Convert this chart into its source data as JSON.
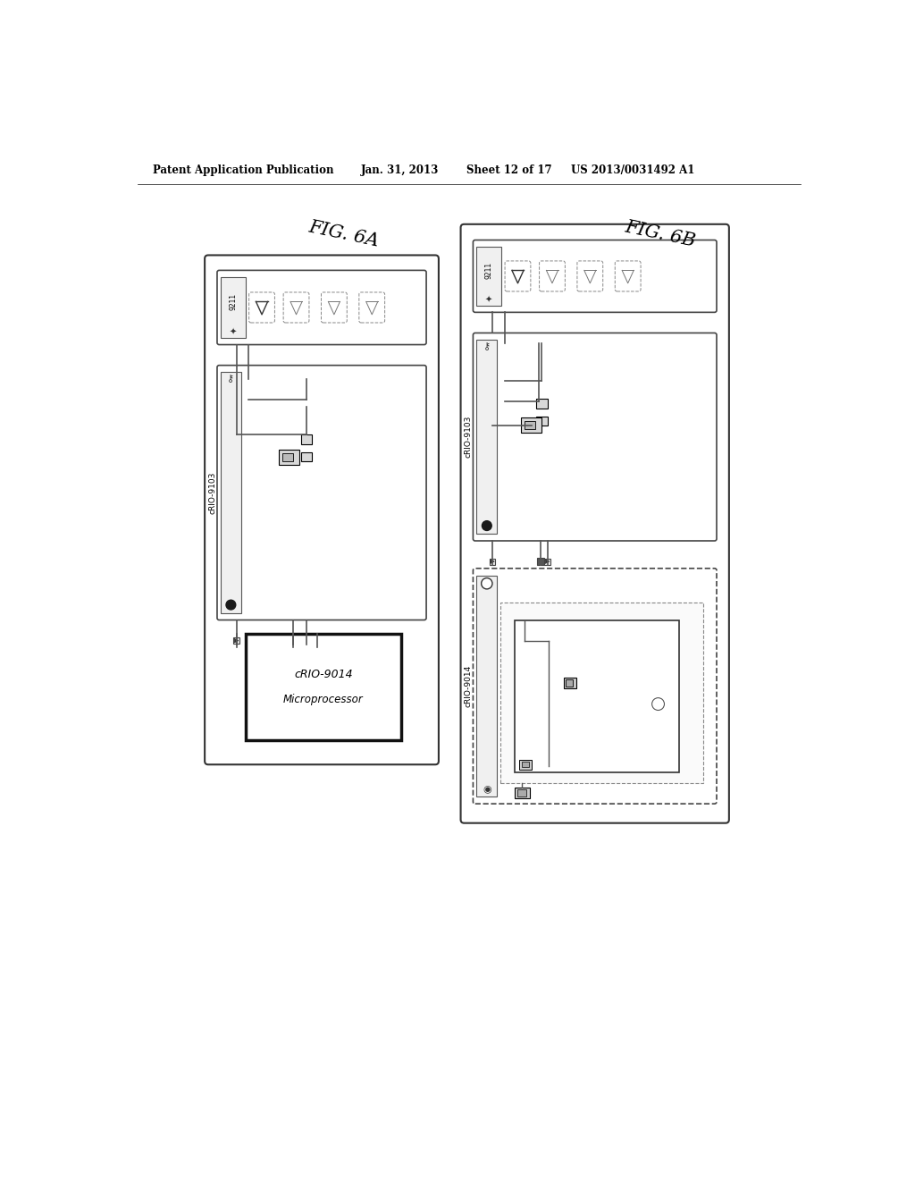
{
  "background_color": "#ffffff",
  "header_text": "Patent Application Publication",
  "header_date": "Jan. 31, 2013",
  "header_sheet": "Sheet 12 of 17",
  "header_patent": "US 2013/0031492 A1",
  "fig6a_label": "FIG. 6A",
  "fig6b_label": "FIG. 6B",
  "label_9211": "9211",
  "label_crio9103": "cRIO-9103",
  "label_crio9014": "cRIO-9014",
  "label_microprocessor": "Microprocessor"
}
